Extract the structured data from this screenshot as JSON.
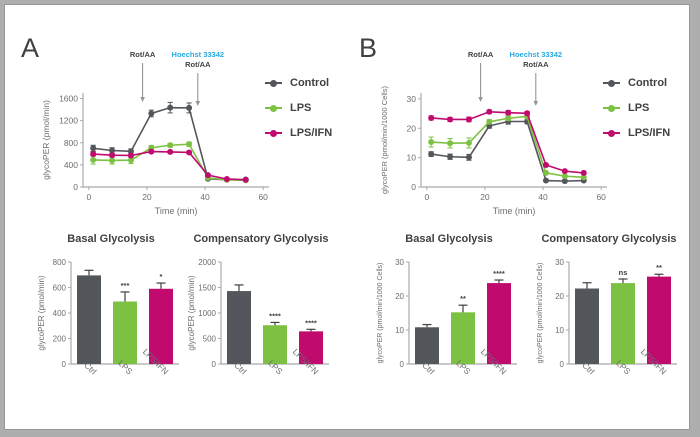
{
  "colors": {
    "control": "#53565a",
    "lps": "#7dc142",
    "lps_ifn": "#c00a6e",
    "hoechst_blue": "#29abe2",
    "text": "#414042",
    "tick": "#6d6e71",
    "axis": "#a7a9ac",
    "arrow": "#939598",
    "background": "#aeaeae",
    "card": "#ffffff"
  },
  "panels": {
    "a": {
      "label": "A"
    },
    "b": {
      "label": "B"
    }
  },
  "legend": {
    "items": [
      {
        "label": "Control",
        "color": "control"
      },
      {
        "label": "LPS",
        "color": "lps"
      },
      {
        "label": "LPS/IFN",
        "color": "lps_ifn"
      }
    ]
  },
  "chart_data": [
    {
      "type": "line",
      "panel": "A",
      "title": "",
      "xlabel": "Time (min)",
      "ylabel": "glycoPER (pmol/min)",
      "ylabel_size": 8.5,
      "xlim": [
        -2,
        62
      ],
      "ylim": [
        0,
        1700
      ],
      "xticks": [
        0,
        20,
        40,
        60
      ],
      "yticks": [
        0,
        400,
        800,
        1200,
        1600
      ],
      "x": [
        1.5,
        8,
        14.5,
        21.5,
        28,
        34.5,
        41,
        47.5,
        54
      ],
      "series": [
        {
          "name": "Control",
          "color": "control",
          "values": [
            700,
            660,
            645,
            1330,
            1435,
            1430,
            150,
            130,
            135
          ],
          "errors": [
            55,
            50,
            45,
            60,
            95,
            90,
            25,
            20,
            20
          ]
        },
        {
          "name": "LPS",
          "color": "lps",
          "values": [
            490,
            480,
            485,
            710,
            755,
            775,
            165,
            130,
            120
          ],
          "errors": [
            75,
            65,
            60,
            40,
            35,
            40,
            20,
            15,
            15
          ]
        },
        {
          "name": "LPS/IFN",
          "color": "lps_ifn",
          "values": [
            595,
            575,
            570,
            640,
            635,
            625,
            215,
            145,
            130
          ],
          "errors": [
            35,
            30,
            30,
            25,
            25,
            25,
            15,
            12,
            12
          ]
        }
      ],
      "annotations": [
        {
          "x": 18.5,
          "lines": [
            {
              "text": "Rot/AA",
              "color": "text"
            }
          ]
        },
        {
          "x": 37.5,
          "lines": [
            {
              "text": "Hoechst 33342",
              "color": "hoechst_blue"
            },
            {
              "text": "Rot/AA",
              "color": "text"
            }
          ]
        }
      ]
    },
    {
      "type": "line",
      "panel": "B",
      "title": "",
      "xlabel": "Time (min)",
      "ylabel": "glycoPER (pmol/min/1000 Cells)",
      "ylabel_size": 7.5,
      "xlim": [
        -2,
        62
      ],
      "ylim": [
        0,
        32
      ],
      "xticks": [
        0,
        20,
        40,
        60
      ],
      "yticks": [
        0,
        10,
        20,
        30
      ],
      "x": [
        1.5,
        8,
        14.5,
        21.5,
        28,
        34.5,
        41,
        47.5,
        54
      ],
      "series": [
        {
          "name": "Control",
          "color": "control",
          "values": [
            11.2,
            10.3,
            10.1,
            20.8,
            22.3,
            22.3,
            2.2,
            2.0,
            2.2
          ],
          "errors": [
            0.8,
            0.9,
            1.0,
            0.8,
            0.9,
            0.8,
            0.3,
            0.3,
            0.3
          ]
        },
        {
          "name": "LPS",
          "color": "lps",
          "values": [
            15.3,
            14.9,
            15.0,
            22.2,
            23.4,
            24.0,
            4.8,
            3.7,
            3.3
          ],
          "errors": [
            1.7,
            1.6,
            1.7,
            0.7,
            0.8,
            0.8,
            0.4,
            0.3,
            0.3
          ]
        },
        {
          "name": "LPS/IFN",
          "color": "lps_ifn",
          "values": [
            23.5,
            23.0,
            23.0,
            25.6,
            25.3,
            25.1,
            7.5,
            5.4,
            4.8
          ],
          "errors": [
            0.7,
            0.7,
            0.8,
            0.6,
            0.7,
            0.6,
            0.4,
            0.4,
            0.4
          ]
        }
      ],
      "annotations": [
        {
          "x": 18.5,
          "lines": [
            {
              "text": "Rot/AA",
              "color": "text"
            }
          ]
        },
        {
          "x": 37.5,
          "lines": [
            {
              "text": "Hoechst 33342",
              "color": "hoechst_blue"
            },
            {
              "text": "Rot/AA",
              "color": "text"
            }
          ]
        }
      ]
    },
    {
      "type": "bar",
      "panel": "A",
      "title": "Basal Glycolysis",
      "ylabel": "glycoPER (pmol/min)",
      "ylabel_size": 8,
      "categories": [
        "Ctrl",
        "LPS",
        "LPS/IFN"
      ],
      "colors": [
        "control",
        "lps",
        "lps_ifn"
      ],
      "values": [
        695,
        490,
        590
      ],
      "errors": [
        40,
        75,
        45
      ],
      "significance": [
        "",
        "***",
        "*"
      ],
      "ylim": [
        0,
        800
      ],
      "yticks": [
        0,
        200,
        400,
        600,
        800
      ]
    },
    {
      "type": "bar",
      "panel": "A",
      "title": "Compensatory Glycolysis",
      "ylabel": "glycoPER (pmol/min)",
      "ylabel_size": 8,
      "categories": [
        "Ctrl",
        "LPS",
        "LPS/IFN"
      ],
      "colors": [
        "control",
        "lps",
        "lps_ifn"
      ],
      "values": [
        1430,
        760,
        640
      ],
      "errors": [
        120,
        55,
        40
      ],
      "significance": [
        "",
        "****",
        "****"
      ],
      "ylim": [
        0,
        2000
      ],
      "yticks": [
        0,
        500,
        1000,
        1500,
        2000
      ]
    },
    {
      "type": "bar",
      "panel": "B",
      "title": "Basal Glycolysis",
      "ylabel": "glycoPER (pmol/min/1000 Cells)",
      "ylabel_size": 7,
      "categories": [
        "Ctrl",
        "LPS",
        "LPS/IFN"
      ],
      "colors": [
        "control",
        "lps",
        "lps_ifn"
      ],
      "values": [
        10.8,
        15.2,
        23.8
      ],
      "errors": [
        0.8,
        2.1,
        0.9
      ],
      "significance": [
        "",
        "**",
        "****"
      ],
      "ylim": [
        0,
        30
      ],
      "yticks": [
        0,
        10,
        20,
        30
      ]
    },
    {
      "type": "bar",
      "panel": "B",
      "title": "Compensatory Glycolysis",
      "ylabel": "glycoPER (pmol/min/1000 Cells)",
      "ylabel_size": 7,
      "categories": [
        "Ctrl",
        "LPS",
        "LPS/IFN"
      ],
      "colors": [
        "control",
        "lps",
        "lps_ifn"
      ],
      "values": [
        22.2,
        23.8,
        25.7
      ],
      "errors": [
        1.7,
        1.2,
        0.7
      ],
      "significance": [
        "",
        "ns",
        "**"
      ],
      "ylim": [
        0,
        30
      ],
      "yticks": [
        0,
        10,
        20,
        30
      ]
    }
  ]
}
